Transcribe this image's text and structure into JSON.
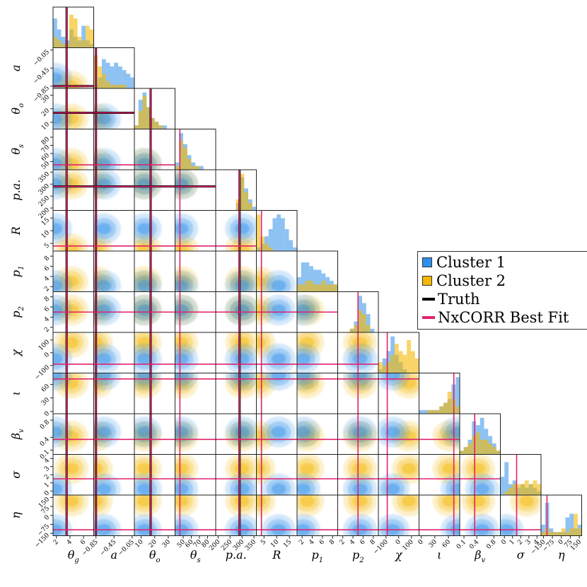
{
  "chart_data": {
    "type": "corner",
    "title": "",
    "parameters": [
      {
        "label": "θ_g",
        "ticks": [
          2,
          4,
          6
        ],
        "tick_labels": [
          "2",
          "4",
          "6"
        ],
        "range": [
          1.5,
          7.5
        ],
        "truth": 3.5,
        "bestfit": 3.5
      },
      {
        "label": "a",
        "ticks": [
          -0.85,
          -0.45,
          -0.05
        ],
        "tick_labels": [
          "−0.85",
          "−0.45",
          "−0.05"
        ],
        "range": [
          -0.9,
          0.0
        ],
        "truth": -0.85,
        "bestfit": -0.85
      },
      {
        "label": "θ_o",
        "ticks": [
          10,
          20,
          30
        ],
        "tick_labels": [
          "10",
          "20",
          "30"
        ],
        "range": [
          5,
          35
        ],
        "truth": 17,
        "bestfit": 17
      },
      {
        "label": "θ_s",
        "ticks": [
          50,
          60,
          70,
          80
        ],
        "tick_labels": [
          "50",
          "60",
          "70",
          "80"
        ],
        "range": [
          40,
          90
        ],
        "truth": null,
        "bestfit": 46
      },
      {
        "label": "p.a.",
        "ticks": [
          200,
          250,
          300,
          350
        ],
        "tick_labels": [
          "200",
          "250",
          "300",
          "350"
        ],
        "range": [
          190,
          360
        ],
        "truth": 290,
        "bestfit": 290
      },
      {
        "label": "R",
        "ticks": [
          5,
          10,
          15
        ],
        "tick_labels": [
          "5",
          "10",
          "15"
        ],
        "range": [
          2,
          18
        ],
        "truth": null,
        "bestfit": 4
      },
      {
        "label": "p_1",
        "ticks": [
          2,
          4,
          6,
          8
        ],
        "tick_labels": [
          "2",
          "4",
          "6",
          "8"
        ],
        "range": [
          1,
          9
        ],
        "truth": null,
        "bestfit": null
      },
      {
        "label": "p_2",
        "ticks": [
          2,
          4,
          6,
          8
        ],
        "tick_labels": [
          "2",
          "4",
          "6",
          "8"
        ],
        "range": [
          1,
          9
        ],
        "truth": null,
        "bestfit": 5
      },
      {
        "label": "χ",
        "ticks": [
          -100,
          0,
          100
        ],
        "tick_labels": [
          "−100",
          "0",
          "100"
        ],
        "range": [
          -160,
          160
        ],
        "truth": null,
        "bestfit": -90
      },
      {
        "label": "ι",
        "ticks": [
          0,
          30,
          60
        ],
        "tick_labels": [
          "0",
          "30",
          "60"
        ],
        "range": [
          -5,
          85
        ],
        "truth": null,
        "bestfit": 72
      },
      {
        "label": "β_v",
        "ticks": [
          0.1,
          0.4,
          0.8
        ],
        "tick_labels": [
          "0.1",
          "0.4",
          "0.8"
        ],
        "range": [
          0.0,
          0.95
        ],
        "truth": null,
        "bestfit": 0.35
      },
      {
        "label": "σ",
        "ticks": [
          0,
          1,
          2,
          3,
          4
        ],
        "tick_labels": [
          "0",
          "1",
          "2",
          "3",
          "4"
        ],
        "range": [
          -0.5,
          4.5
        ],
        "truth": null,
        "bestfit": 1.5
      },
      {
        "label": "η",
        "ticks": [
          -150,
          -75,
          0,
          75,
          150
        ],
        "tick_labels": [
          "−150",
          "−75",
          "0",
          "75",
          "150"
        ],
        "range": [
          -170,
          170
        ],
        "truth": null,
        "bestfit": -120
      }
    ],
    "series": [
      {
        "name": "Cluster 1",
        "color": "#2f8fea"
      },
      {
        "name": "Cluster 2",
        "color": "#f5b700"
      }
    ],
    "histograms": {
      "Cluster 1": [
        [
          8,
          5,
          3,
          2,
          5,
          3,
          2,
          6,
          2,
          1
        ],
        [
          1,
          3,
          8,
          7,
          6,
          7,
          6,
          5,
          4,
          3
        ],
        [
          1,
          8,
          10,
          6,
          3,
          2,
          1,
          1,
          0,
          0
        ],
        [
          2,
          10,
          7,
          4,
          2,
          1,
          1,
          0,
          0,
          0
        ],
        [
          0,
          0,
          0,
          0,
          0,
          2,
          9,
          6,
          3,
          1
        ],
        [
          1,
          2,
          4,
          6,
          9,
          10,
          9,
          6,
          3,
          1
        ],
        [
          4,
          8,
          8,
          7,
          6,
          6,
          5,
          4,
          3,
          2
        ],
        [
          0,
          0,
          0,
          1,
          3,
          10,
          8,
          5,
          1,
          0
        ],
        [
          1,
          4,
          6,
          10,
          5,
          3,
          1,
          0,
          0,
          0
        ],
        [
          1,
          1,
          1,
          1,
          1,
          2,
          3,
          4,
          8,
          10
        ],
        [
          1,
          2,
          4,
          9,
          8,
          10,
          7,
          5,
          3,
          1
        ],
        [
          5,
          9,
          3,
          4,
          2,
          3,
          2,
          3,
          2,
          1
        ],
        [
          3,
          9,
          2,
          1,
          1,
          1,
          5,
          6,
          2,
          3
        ]
      ],
      "Cluster 2": [
        [
          3,
          2,
          1,
          1,
          9,
          8,
          3,
          2,
          6,
          5
        ],
        [
          9,
          6,
          4,
          2,
          1,
          1,
          1,
          1,
          0,
          0
        ],
        [
          1,
          5,
          9,
          6,
          3,
          2,
          1,
          0,
          0,
          0
        ],
        [
          1,
          8,
          6,
          3,
          1,
          1,
          0,
          0,
          0,
          0
        ],
        [
          0,
          0,
          0,
          0,
          0,
          3,
          10,
          5,
          2,
          0
        ],
        [
          10,
          4,
          2,
          1,
          0,
          0,
          0,
          0,
          0,
          0
        ],
        [
          2,
          2,
          3,
          3,
          2,
          2,
          3,
          2,
          2,
          2
        ],
        [
          0,
          0,
          0,
          1,
          2,
          6,
          5,
          2,
          0,
          0
        ],
        [
          3,
          2,
          3,
          5,
          8,
          6,
          5,
          9,
          6,
          4
        ],
        [
          0,
          0,
          1,
          1,
          1,
          2,
          3,
          6,
          4,
          2
        ],
        [
          1,
          2,
          3,
          5,
          6,
          4,
          4,
          3,
          2,
          1
        ],
        [
          0,
          1,
          2,
          3,
          3,
          3,
          4,
          3,
          4,
          3
        ],
        [
          1,
          2,
          1,
          1,
          1,
          2,
          1,
          2,
          6,
          2
        ]
      ]
    },
    "legend": {
      "placement": "right",
      "entries": [
        {
          "label": "Cluster 1",
          "kind": "patch",
          "color": "#2f8fea"
        },
        {
          "label": "Cluster 2",
          "kind": "patch",
          "color": "#f5b700"
        },
        {
          "label": "Truth",
          "kind": "line",
          "color": "#000000"
        },
        {
          "label": "NxCORR Best Fit",
          "kind": "line",
          "color": "#e0226e"
        }
      ]
    }
  }
}
